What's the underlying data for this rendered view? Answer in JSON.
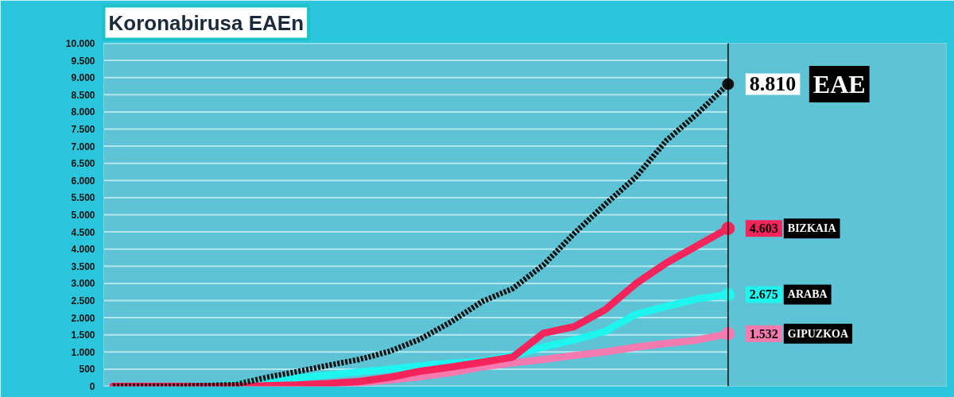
{
  "chart_data": {
    "type": "line",
    "title": "Koronabirusa EAEn",
    "categories": [
      null,
      null,
      null,
      null,
      null,
      null,
      null,
      null,
      null,
      null,
      null,
      null,
      null,
      null,
      null,
      null,
      null,
      null,
      null,
      null,
      null
    ],
    "series": [
      {
        "name": "EAE",
        "color": "#111111",
        "line_style": "dashed",
        "values": [
          0,
          0,
          0,
          20,
          50,
          260,
          430,
          610,
          780,
          1020,
          1380,
          1880,
          2470,
          2850,
          3540,
          4460,
          5300,
          6100,
          7170,
          7950,
          8810
        ],
        "value_labels": [
          null,
          null,
          null,
          null,
          null,
          null,
          null,
          null,
          null,
          null,
          null,
          null,
          null,
          null,
          null,
          null,
          null,
          null,
          null,
          null,
          "8.810"
        ]
      },
      {
        "name": "BIZKAIA",
        "color": "#f5245a",
        "values": [
          0,
          0,
          0,
          0,
          0,
          20,
          40,
          80,
          140,
          260,
          440,
          560,
          700,
          850,
          1550,
          1740,
          2230,
          2990,
          3600,
          4100,
          4603
        ],
        "value_labels": [
          null,
          null,
          null,
          null,
          null,
          null,
          null,
          null,
          null,
          null,
          null,
          null,
          null,
          null,
          null,
          null,
          null,
          null,
          null,
          null,
          "4.603"
        ]
      },
      {
        "name": "ARABA",
        "color": "#1ef5ee",
        "values": [
          0,
          0,
          0,
          20,
          50,
          120,
          250,
          330,
          420,
          500,
          600,
          680,
          730,
          900,
          1150,
          1350,
          1600,
          2100,
          2330,
          2550,
          2675
        ],
        "value_labels": [
          null,
          null,
          null,
          null,
          null,
          null,
          null,
          null,
          null,
          null,
          null,
          null,
          null,
          null,
          null,
          null,
          null,
          null,
          null,
          null,
          "2.675"
        ]
      },
      {
        "name": "GIPUZKOA",
        "color": "#f57aaf",
        "values": [
          0,
          0,
          0,
          0,
          0,
          0,
          20,
          40,
          100,
          180,
          280,
          400,
          560,
          680,
          780,
          900,
          1000,
          1140,
          1250,
          1350,
          1532
        ],
        "value_labels": [
          null,
          null,
          null,
          null,
          null,
          null,
          null,
          null,
          null,
          null,
          null,
          null,
          null,
          null,
          null,
          null,
          null,
          null,
          null,
          null,
          "1.532"
        ]
      }
    ],
    "ylim": [
      0,
      10000
    ],
    "yticks": [
      {
        "value": 0,
        "label": "0"
      },
      {
        "value": 500,
        "label": "500"
      },
      {
        "value": 1000,
        "label": "1.000"
      },
      {
        "value": 1500,
        "label": "1.500"
      },
      {
        "value": 2000,
        "label": "2.000"
      },
      {
        "value": 2500,
        "label": "2.500"
      },
      {
        "value": 3000,
        "label": "3.000"
      },
      {
        "value": 3500,
        "label": "3.500"
      },
      {
        "value": 4000,
        "label": "4.000"
      },
      {
        "value": 4500,
        "label": "4.500"
      },
      {
        "value": 5000,
        "label": "5.000"
      },
      {
        "value": 5500,
        "label": "5.500"
      },
      {
        "value": 6000,
        "label": "6.000"
      },
      {
        "value": 6500,
        "label": "6.500"
      },
      {
        "value": 7000,
        "label": "7.000"
      },
      {
        "value": 7500,
        "label": "7.500"
      },
      {
        "value": 8000,
        "label": "8.000"
      },
      {
        "value": 8500,
        "label": "8.500"
      },
      {
        "value": 9000,
        "label": "9.000"
      },
      {
        "value": 9500,
        "label": "9.500"
      },
      {
        "value": 10000,
        "label": "10.000"
      }
    ],
    "tick_labels": "y",
    "grid": "y",
    "legend": "right"
  }
}
